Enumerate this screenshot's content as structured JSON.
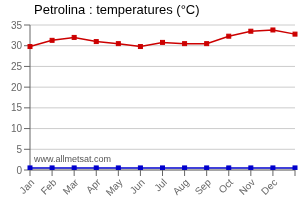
{
  "chart_data": {
    "type": "line",
    "title": "Petrolina : temperatures (°C)",
    "categories": [
      "Jan",
      "Feb",
      "Mar",
      "Apr",
      "May",
      "Jun",
      "Jul",
      "Aug",
      "Sep",
      "Oct",
      "Nov",
      "Dec",
      null
    ],
    "series": [
      {
        "color": "#cc0000",
        "marker": "square",
        "values": [
          29.8,
          31.3,
          32.0,
          31.0,
          30.5,
          29.8,
          30.8,
          30.5,
          30.5,
          32.3,
          33.5,
          33.8,
          32.8
        ]
      },
      {
        "color": "#0000cc",
        "marker": "square",
        "values": [
          0.5,
          0.5,
          0.5,
          0.5,
          0.5,
          0.5,
          0.5,
          0.5,
          0.5,
          0.5,
          0.5,
          0.5,
          0.5
        ]
      }
    ],
    "ylim": [
      0,
      35
    ],
    "yticks": [
      0,
      5,
      10,
      15,
      20,
      25,
      30,
      35
    ],
    "grid": true,
    "annotations": [
      "www.allmetsat.com"
    ]
  }
}
